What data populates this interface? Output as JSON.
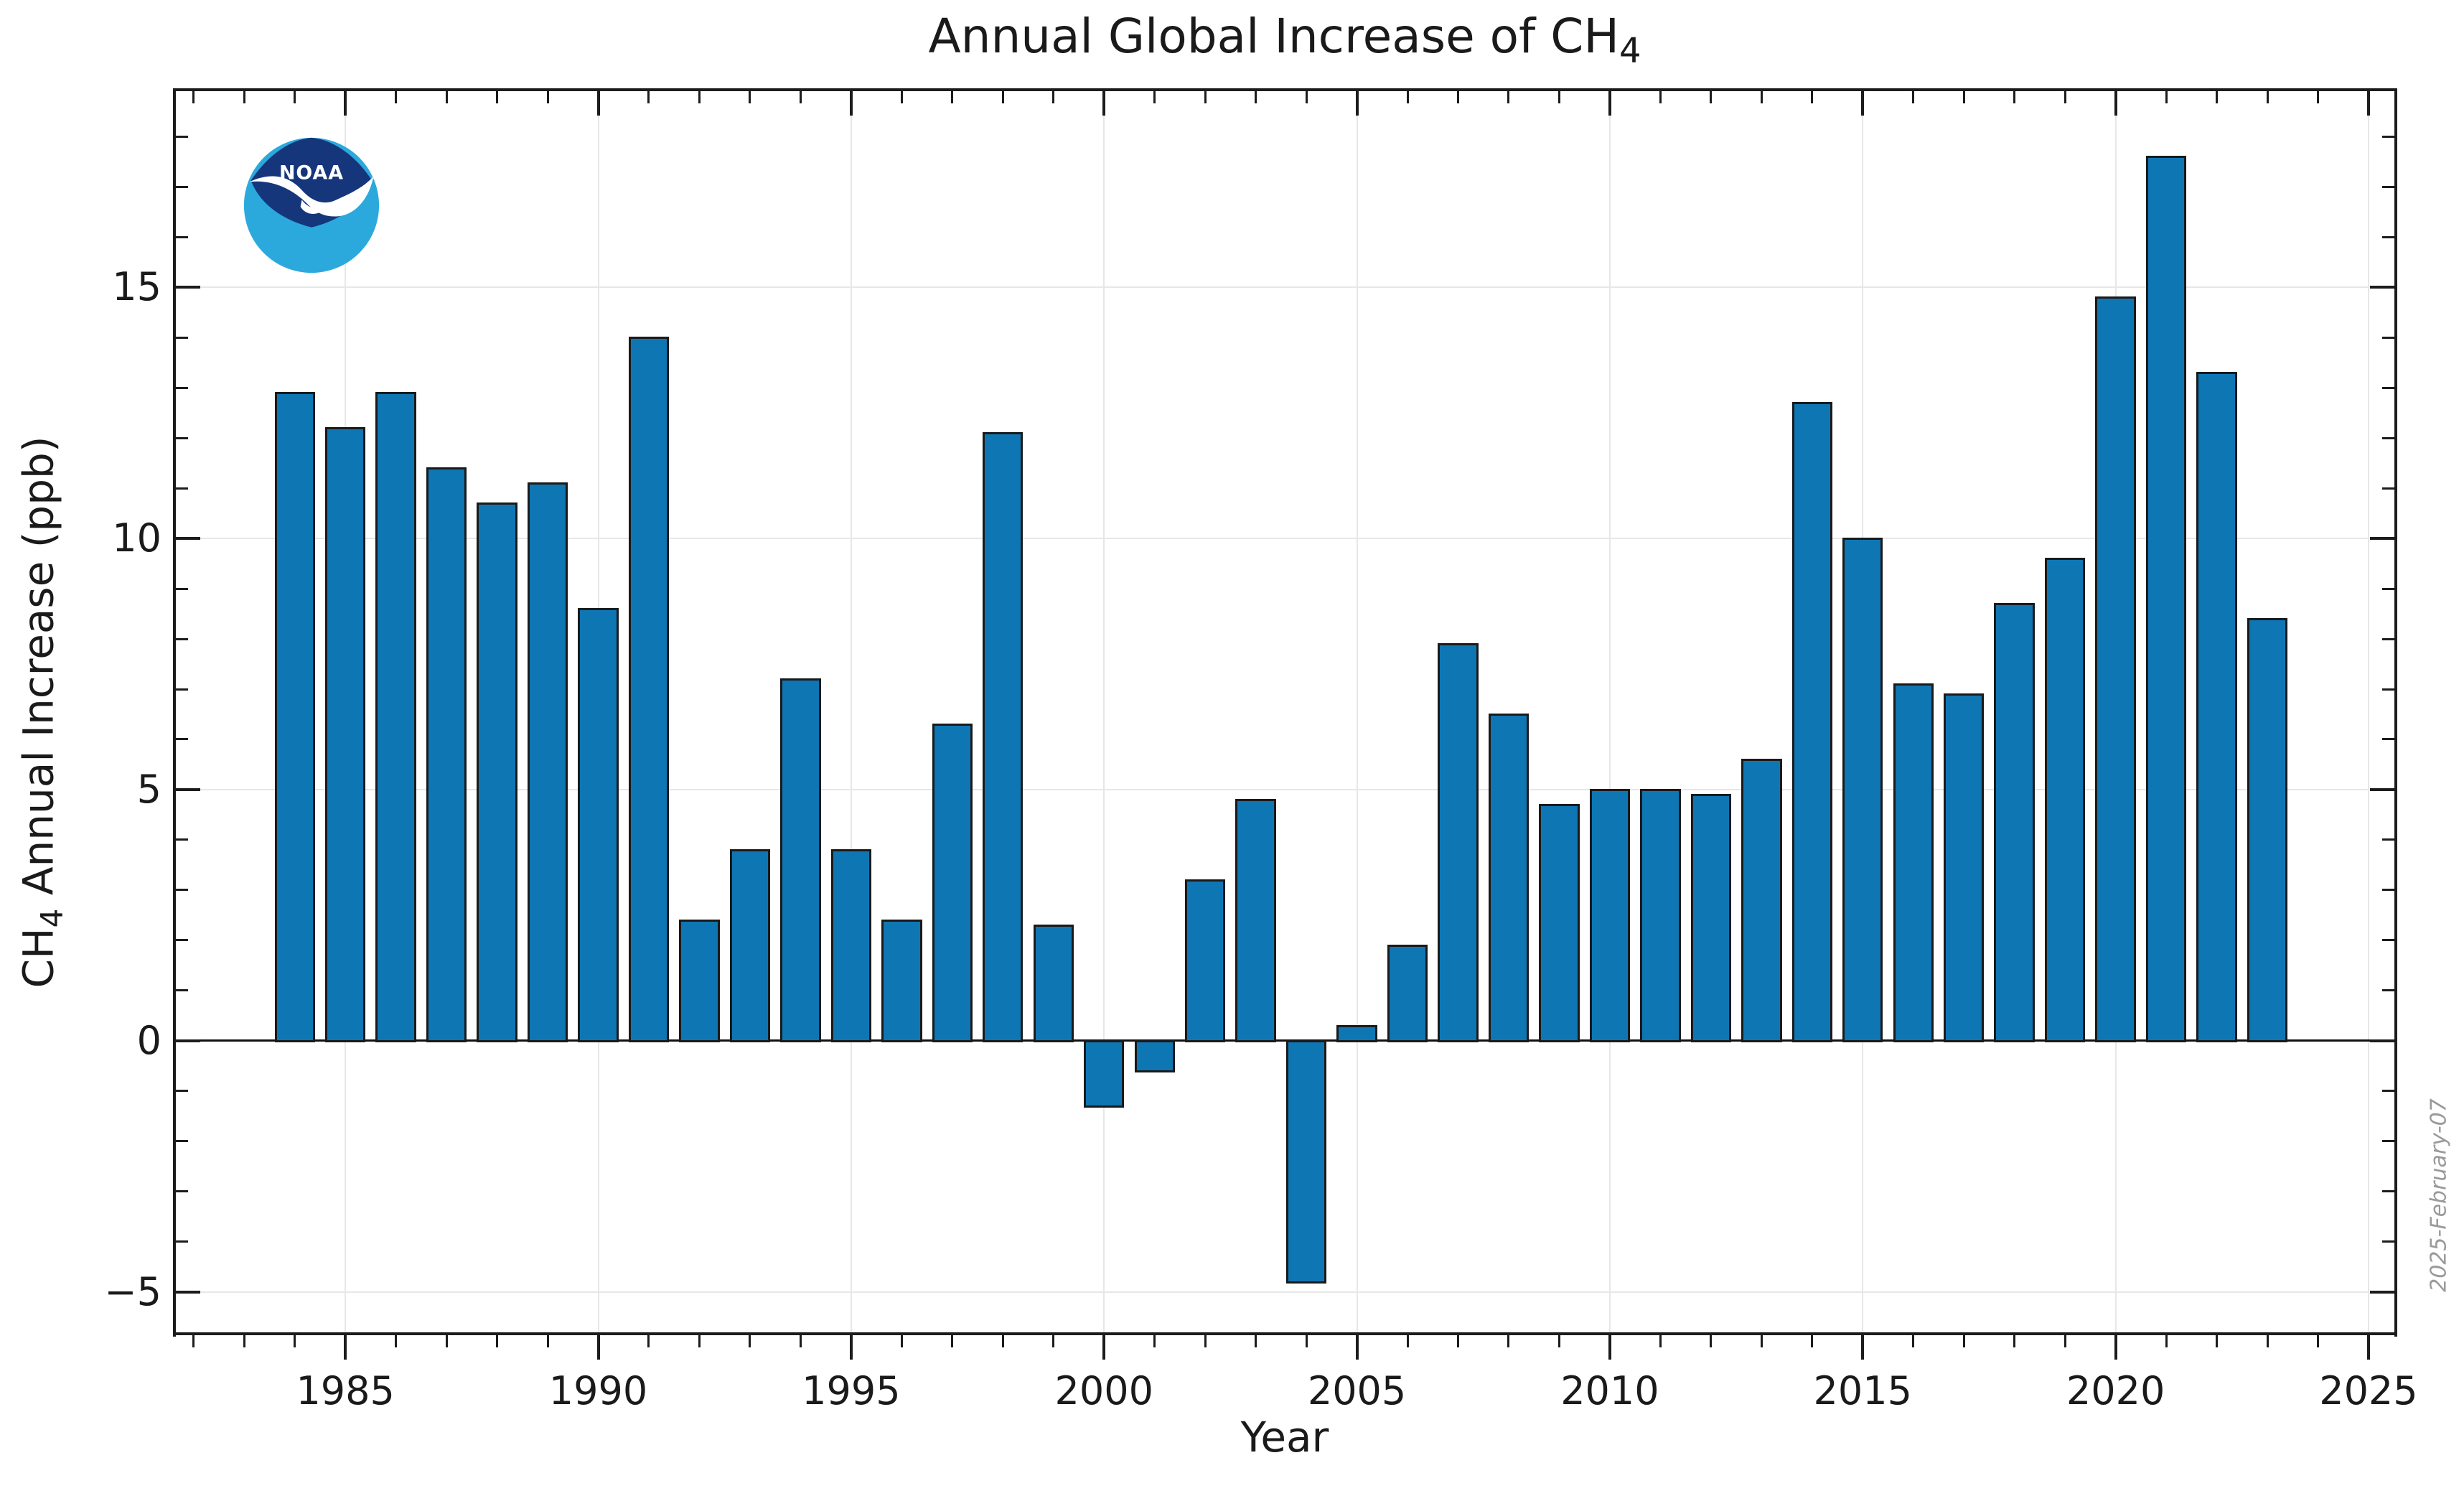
{
  "title": {
    "prefix": "Annual Global Increase of CH",
    "subscript": "4"
  },
  "xlabel": "Year",
  "ylabel": {
    "pre": "CH",
    "sub": "4",
    "post": " Annual Increase (ppb)"
  },
  "watermark": "2025-February-07",
  "logo": {
    "name": "NOAA",
    "text": "NOAA",
    "dark_blue": "#16367c",
    "light_blue": "#2ba9dc"
  },
  "chart_data": {
    "type": "bar",
    "title": "Annual Global Increase of CH4",
    "xlabel": "Year",
    "ylabel": "CH4 Annual Increase (ppb)",
    "x": [
      1984,
      1985,
      1986,
      1987,
      1988,
      1989,
      1990,
      1991,
      1992,
      1993,
      1994,
      1995,
      1996,
      1997,
      1998,
      1999,
      2000,
      2001,
      2002,
      2003,
      2004,
      2005,
      2006,
      2007,
      2008,
      2009,
      2010,
      2011,
      2012,
      2013,
      2014,
      2015,
      2016,
      2017,
      2018,
      2019,
      2020,
      2021,
      2022,
      2023
    ],
    "values": [
      12.9,
      12.2,
      12.9,
      11.4,
      10.7,
      11.1,
      8.6,
      14.0,
      2.4,
      3.8,
      7.2,
      3.8,
      2.4,
      6.3,
      12.1,
      2.3,
      -1.3,
      -0.6,
      3.2,
      4.8,
      -4.8,
      0.3,
      1.9,
      7.9,
      6.5,
      4.7,
      5.0,
      5.0,
      4.9,
      5.6,
      12.7,
      10.0,
      7.1,
      6.9,
      8.7,
      9.6,
      14.8,
      17.6,
      13.3,
      8.4
    ],
    "xlim": [
      1981.62,
      2025.54
    ],
    "ylim": [
      -5.83,
      18.93
    ],
    "xticks_major": [
      1985,
      1990,
      1995,
      2000,
      2005,
      2010,
      2015,
      2020,
      2025
    ],
    "yticks_major": [
      -5,
      0,
      5,
      10,
      15
    ],
    "x_minor_step": 1,
    "y_minor_step": 1,
    "grid": true,
    "legend": "none",
    "bar_width_years": 0.8,
    "bar_color": "#0f76b4",
    "bar_edge_color": "#1a1a1a",
    "zero_line": true
  }
}
